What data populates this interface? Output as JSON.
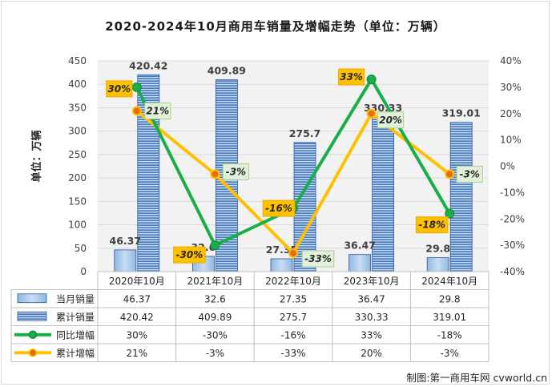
{
  "chart_data": {
    "type": "bar+line",
    "title": "2020-2024年10月商用车销量及增幅走势（单位：万辆）",
    "ylabel": "单位：万辆",
    "categories": [
      "2020年10月",
      "2021年10月",
      "2022年10月",
      "2023年10月",
      "2024年10月"
    ],
    "ylim": [
      0,
      450
    ],
    "yticks": [
      "0",
      "50",
      "100",
      "150",
      "200",
      "250",
      "300",
      "350",
      "400",
      "450"
    ],
    "ylim_right": [
      -40,
      40
    ],
    "yticks_right": [
      "-40%",
      "-30%",
      "-20%",
      "-10%",
      "0%",
      "10%",
      "20%",
      "30%",
      "40%"
    ],
    "series": [
      {
        "name": "当月销量",
        "kind": "bar",
        "color": "#9dc3e6",
        "values": [
          46.37,
          32.6,
          27.35,
          36.47,
          29.8
        ],
        "labels": [
          "46.37",
          "32.6",
          "27.35",
          "36.47",
          "29.8"
        ]
      },
      {
        "name": "累计销量",
        "kind": "bar",
        "color": "#5b8fd0",
        "values": [
          420.42,
          409.89,
          275.7,
          330.33,
          319.01
        ],
        "labels": [
          "420.42",
          "409.89",
          "275.7",
          "330.33",
          "319.01"
        ]
      },
      {
        "name": "同比增幅",
        "kind": "line",
        "axis": "right",
        "color": "#1aae48",
        "values": [
          30,
          -30,
          -16,
          33,
          -18
        ],
        "labels": [
          "30%",
          "-30%",
          "-16%",
          "33%",
          "-18%"
        ]
      },
      {
        "name": "累计增幅",
        "kind": "line",
        "axis": "right",
        "color": "#ffc000",
        "values": [
          21,
          -3,
          -33,
          20,
          -3
        ],
        "labels": [
          "21%",
          "-3%",
          "-33%",
          "20%",
          "-3%"
        ]
      }
    ],
    "legend": "table-bottom"
  },
  "credit": "制图:第一商用车网 cvworld.cn"
}
